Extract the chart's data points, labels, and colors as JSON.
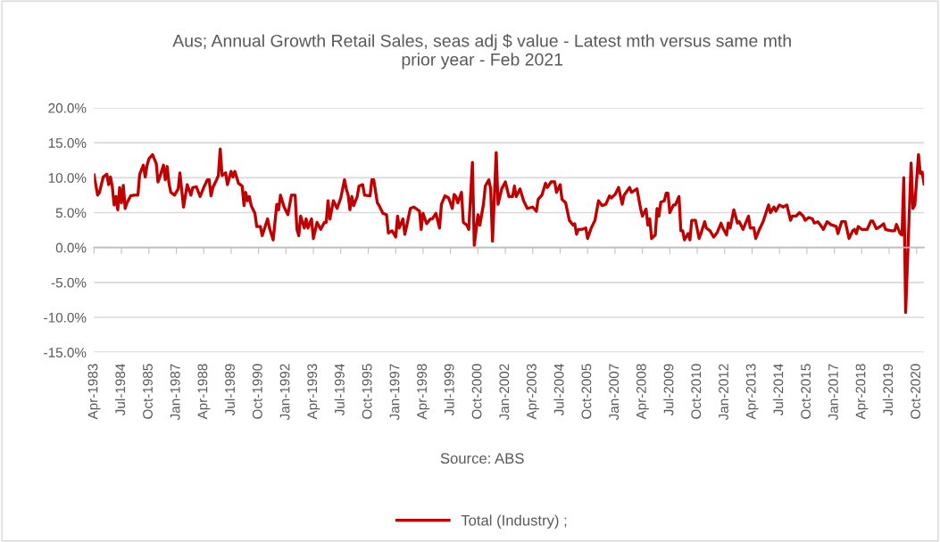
{
  "chart_data": {
    "type": "line",
    "title": "Aus; Annual Growth Retail Sales, seas adj $ value - Latest mth versus same mth prior year - Feb 2021",
    "annotations": [
      "Source: ABS"
    ],
    "x": [
      "1983-04",
      "1983-06",
      "1983-07",
      "1983-09",
      "1983-11",
      "1983-12",
      "1984-01",
      "1984-02",
      "1984-03",
      "1984-04",
      "1984-05",
      "1984-06",
      "1984-07",
      "1984-08",
      "1984-09",
      "1984-10",
      "1984-12",
      "1985-02",
      "1985-04",
      "1985-05",
      "1985-07",
      "1985-08",
      "1985-09",
      "1985-10",
      "1985-12",
      "1986-02",
      "1986-03",
      "1986-04",
      "1986-06",
      "1986-07",
      "1986-08",
      "1986-09",
      "1986-10",
      "1986-12",
      "1987-02",
      "1987-03",
      "1987-04",
      "1987-05",
      "1987-07",
      "1987-09",
      "1987-10",
      "1987-12",
      "1988-02",
      "1988-04",
      "1988-06",
      "1988-07",
      "1988-08",
      "1988-09",
      "1988-11",
      "1988-12",
      "1989-01",
      "1989-02",
      "1989-04",
      "1989-05",
      "1989-07",
      "1989-08",
      "1989-09",
      "1989-11",
      "1990-01",
      "1990-02",
      "1990-03",
      "1990-04",
      "1990-05",
      "1990-06",
      "1990-08",
      "1990-09",
      "1990-11",
      "1990-12",
      "1991-03",
      "1991-04",
      "1991-06",
      "1991-08",
      "1991-09",
      "1991-10",
      "1991-12",
      "1992-02",
      "1992-04",
      "1992-06",
      "1992-07",
      "1992-08",
      "1992-09",
      "1992-11",
      "1992-12",
      "1993-01",
      "1993-03",
      "1993-04",
      "1993-06",
      "1993-08",
      "1993-10",
      "1993-11",
      "1993-12",
      "1994-01",
      "1994-03",
      "1994-05",
      "1994-07",
      "1994-09",
      "1994-10",
      "1994-11",
      "1994-12",
      "1995-01",
      "1995-02",
      "1995-04",
      "1995-05",
      "1995-07",
      "1995-08",
      "1995-11",
      "1995-12",
      "1996-01",
      "1996-03",
      "1996-04",
      "1996-06",
      "1996-08",
      "1996-09",
      "1996-11",
      "1997-01",
      "1997-02",
      "1997-03",
      "1997-05",
      "1997-06",
      "1997-07",
      "1997-09",
      "1997-11",
      "1998-02",
      "1998-03",
      "1998-04",
      "1998-06",
      "1998-08",
      "1998-09",
      "1998-11",
      "1999-01",
      "1999-02",
      "1999-04",
      "1999-06",
      "1999-08",
      "1999-09",
      "1999-10",
      "1999-11",
      "2000-01",
      "2000-02",
      "2000-04",
      "2000-05",
      "2000-07",
      "2000-08",
      "2000-10",
      "2000-11",
      "2001-01",
      "2001-02",
      "2001-04",
      "2001-05",
      "2001-06",
      "2001-08",
      "2001-09",
      "2001-11",
      "2002-01",
      "2002-03",
      "2002-05",
      "2002-06",
      "2002-07",
      "2002-09",
      "2002-11",
      "2003-01",
      "2003-04",
      "2003-06",
      "2003-07",
      "2003-09",
      "2003-11",
      "2003-12",
      "2004-02",
      "2004-04",
      "2004-05",
      "2004-07",
      "2004-08",
      "2004-10",
      "2004-12",
      "2005-02",
      "2005-03",
      "2005-04",
      "2005-05",
      "2005-07",
      "2005-09",
      "2005-10",
      "2005-12",
      "2006-02",
      "2006-04",
      "2006-06",
      "2006-08",
      "2006-10",
      "2006-11",
      "2007-01",
      "2007-03",
      "2007-05",
      "2007-06",
      "2007-09",
      "2007-10",
      "2008-01",
      "2008-03",
      "2008-04",
      "2008-06",
      "2008-07",
      "2008-08",
      "2008-09",
      "2008-11",
      "2008-12",
      "2009-01",
      "2009-02",
      "2009-04",
      "2009-05",
      "2009-06",
      "2009-07",
      "2009-09",
      "2009-10",
      "2009-12",
      "2010-01",
      "2010-02",
      "2010-03",
      "2010-05",
      "2010-06",
      "2010-07",
      "2010-09",
      "2010-11",
      "2010-12",
      "2011-02",
      "2011-03",
      "2011-05",
      "2011-07",
      "2011-09",
      "2011-11",
      "2011-12",
      "2012-02",
      "2012-03",
      "2012-04",
      "2012-06",
      "2012-08",
      "2012-09",
      "2012-11",
      "2013-02",
      "2013-03",
      "2013-05",
      "2013-06",
      "2013-08",
      "2013-10",
      "2014-01",
      "2014-02",
      "2014-04",
      "2014-05",
      "2014-07",
      "2014-09",
      "2014-11",
      "2015-01",
      "2015-02",
      "2015-04",
      "2015-06",
      "2015-08",
      "2015-09",
      "2015-11",
      "2016-01",
      "2016-02",
      "2016-04",
      "2016-06",
      "2016-07",
      "2016-09",
      "2016-11",
      "2017-02",
      "2017-03",
      "2017-05",
      "2017-07",
      "2017-09",
      "2017-11",
      "2017-12",
      "2018-01",
      "2018-02",
      "2018-04",
      "2018-07",
      "2018-09",
      "2018-10",
      "2018-12",
      "2019-02",
      "2019-04",
      "2019-05",
      "2019-08",
      "2019-10",
      "2019-11",
      "2020-01",
      "2020-02",
      "2020-03",
      "2020-04",
      "2020-07",
      "2020-08",
      "2020-09",
      "2020-11",
      "2020-12",
      "2021-01",
      "2021-02"
    ],
    "series": [
      {
        "name": "Total (Industry) ;",
        "color": "#c00000",
        "values": [
          10.4,
          7.5,
          7.9,
          10.1,
          10.5,
          9.0,
          10.1,
          8.6,
          6.1,
          7.3,
          5.4,
          8.6,
          6.4,
          8.9,
          5.6,
          6.4,
          7.4,
          7.5,
          7.5,
          10.5,
          11.8,
          10.1,
          11.8,
          12.7,
          13.3,
          12.0,
          9.4,
          10.1,
          11.8,
          9.7,
          11.6,
          9.2,
          7.9,
          7.5,
          8.4,
          10.7,
          8.2,
          5.8,
          9.0,
          7.5,
          8.6,
          8.7,
          7.3,
          8.6,
          9.7,
          9.7,
          7.4,
          8.6,
          9.7,
          10.3,
          14.1,
          10.3,
          10.7,
          9.0,
          10.9,
          10.1,
          10.9,
          9.2,
          8.8,
          6.0,
          7.9,
          6.7,
          7.3,
          6.0,
          4.9,
          3.0,
          3.0,
          1.7,
          4.1,
          2.8,
          1.1,
          6.2,
          5.4,
          7.5,
          5.8,
          4.7,
          7.5,
          7.5,
          2.6,
          1.7,
          4.5,
          2.8,
          4.1,
          2.8,
          4.1,
          1.3,
          3.6,
          2.6,
          3.6,
          3.6,
          6.7,
          4.1,
          6.7,
          5.6,
          7.1,
          9.7,
          8.4,
          7.5,
          5.4,
          7.3,
          6.0,
          7.3,
          8.8,
          9.0,
          7.5,
          7.4,
          9.7,
          9.7,
          6.4,
          6.0,
          4.9,
          4.7,
          2.1,
          2.4,
          1.5,
          4.5,
          2.8,
          4.1,
          1.9,
          3.0,
          5.6,
          5.8,
          5.2,
          2.6,
          4.9,
          3.4,
          4.1,
          4.1,
          4.9,
          2.8,
          6.2,
          7.4,
          7.1,
          5.6,
          7.6,
          7.3,
          6.4,
          7.9,
          3.6,
          3.2,
          2.6,
          12.2,
          0.3,
          4.7,
          3.2,
          6.2,
          8.8,
          9.7,
          8.4,
          0.9,
          13.6,
          6.2,
          8.4,
          9.4,
          7.3,
          7.3,
          8.8,
          7.3,
          8.4,
          6.7,
          5.6,
          5.8,
          5.2,
          6.9,
          7.5,
          9.2,
          8.6,
          9.4,
          9.4,
          7.9,
          9.0,
          6.9,
          6.4,
          3.9,
          3.2,
          3.4,
          1.9,
          2.6,
          2.6,
          2.8,
          1.3,
          2.8,
          3.9,
          6.7,
          6.0,
          6.2,
          7.4,
          7.1,
          7.6,
          8.6,
          6.2,
          7.5,
          8.6,
          7.9,
          8.4,
          5.6,
          4.5,
          5.5,
          3.2,
          4.1,
          1.3,
          1.8,
          5.6,
          4.5,
          6.5,
          6.7,
          7.8,
          7.8,
          5.0,
          6.1,
          6.1,
          7.3,
          2.4,
          2.4,
          1.1,
          2.0,
          1.1,
          3.9,
          3.9,
          1.3,
          2.0,
          3.7,
          2.8,
          2.4,
          1.5,
          2.2,
          3.5,
          2.8,
          1.8,
          3.5,
          2.8,
          5.4,
          3.5,
          3.7,
          2.6,
          4.5,
          2.8,
          2.8,
          1.3,
          2.6,
          3.7,
          6.1,
          5.0,
          5.8,
          5.2,
          6.1,
          5.8,
          6.1,
          3.9,
          4.5,
          4.5,
          5.0,
          4.5,
          3.9,
          4.3,
          4.1,
          3.5,
          3.7,
          3.0,
          2.6,
          3.7,
          3.3,
          3.0,
          2.0,
          3.7,
          3.7,
          1.3,
          2.4,
          2.6,
          2.0,
          3.0,
          2.6,
          2.6,
          3.8,
          3.8,
          2.7,
          3.0,
          3.4,
          2.6,
          2.4,
          2.4,
          3.3,
          2.0,
          1.8,
          10.0,
          -9.3,
          12.1,
          5.6,
          6.1,
          13.3,
          10.6,
          10.8,
          9.1
        ]
      }
    ],
    "xlim": [
      "1983-04",
      "2021-02"
    ],
    "xticks": [
      {
        "value": "1983-04",
        "label": "Apr-1983"
      },
      {
        "value": "1984-07",
        "label": "Jul-1984"
      },
      {
        "value": "1985-10",
        "label": "Oct-1985"
      },
      {
        "value": "1987-01",
        "label": "Jan-1987"
      },
      {
        "value": "1988-04",
        "label": "Apr-1988"
      },
      {
        "value": "1989-07",
        "label": "Jul-1989"
      },
      {
        "value": "1990-10",
        "label": "Oct-1990"
      },
      {
        "value": "1992-01",
        "label": "Jan-1992"
      },
      {
        "value": "1993-04",
        "label": "Apr-1993"
      },
      {
        "value": "1994-07",
        "label": "Jul-1994"
      },
      {
        "value": "1995-10",
        "label": "Oct-1995"
      },
      {
        "value": "1997-01",
        "label": "Jan-1997"
      },
      {
        "value": "1998-04",
        "label": "Apr-1998"
      },
      {
        "value": "1999-07",
        "label": "Jul-1999"
      },
      {
        "value": "2000-10",
        "label": "Oct-2000"
      },
      {
        "value": "2002-01",
        "label": "Jan-2002"
      },
      {
        "value": "2003-04",
        "label": "Apr-2003"
      },
      {
        "value": "2004-07",
        "label": "Jul-2004"
      },
      {
        "value": "2005-10",
        "label": "Oct-2005"
      },
      {
        "value": "2007-01",
        "label": "Jan-2007"
      },
      {
        "value": "2008-04",
        "label": "Apr-2008"
      },
      {
        "value": "2009-07",
        "label": "Jul-2009"
      },
      {
        "value": "2010-10",
        "label": "Oct-2010"
      },
      {
        "value": "2012-01",
        "label": "Jan-2012"
      },
      {
        "value": "2013-04",
        "label": "Apr-2013"
      },
      {
        "value": "2014-07",
        "label": "Jul-2014"
      },
      {
        "value": "2015-10",
        "label": "Oct-2015"
      },
      {
        "value": "2017-01",
        "label": "Jan-2017"
      },
      {
        "value": "2018-04",
        "label": "Apr-2018"
      },
      {
        "value": "2019-07",
        "label": "Jul-2019"
      },
      {
        "value": "2020-10",
        "label": "Oct-2020"
      }
    ],
    "ylim": [
      -15,
      20
    ],
    "yticks": [
      {
        "value": -15,
        "label": "-15.0%"
      },
      {
        "value": -10,
        "label": "-10.0%"
      },
      {
        "value": -5,
        "label": "-5.0%"
      },
      {
        "value": 0,
        "label": "0.0%"
      },
      {
        "value": 5,
        "label": "5.0%"
      },
      {
        "value": 10,
        "label": "10.0%"
      },
      {
        "value": 15,
        "label": "15.0%"
      },
      {
        "value": 20,
        "label": "20.0%"
      }
    ],
    "grid": "y",
    "legend": "bottom",
    "marker": "none",
    "line_style": "solid"
  }
}
